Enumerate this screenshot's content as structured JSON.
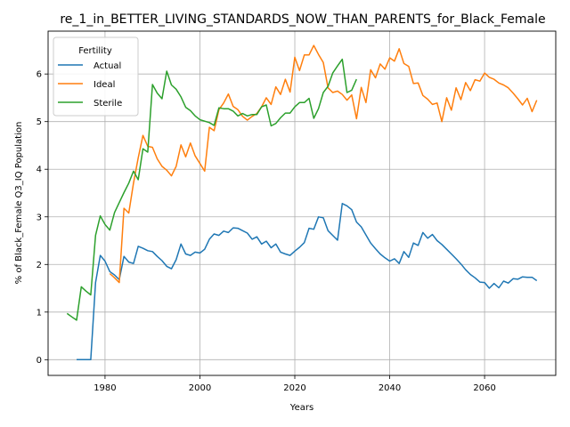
{
  "chart_data": {
    "type": "line",
    "title": "re_1_in_BETTER_LIVING_STANDARDS_NOW_THAN_PARENTS_for_Black_Female",
    "xlabel": "Years",
    "ylabel": "% of Black_Female Q3_IQ Population",
    "xlim": [
      1968,
      2075
    ],
    "ylim": [
      -0.33,
      6.9
    ],
    "xticks": [
      1980,
      2000,
      2020,
      2040,
      2060
    ],
    "yticks": [
      0,
      1,
      2,
      3,
      4,
      5,
      6
    ],
    "grid": true,
    "legend": {
      "title": "Fertility",
      "placement": "top-left"
    },
    "series": [
      {
        "name": "Actual",
        "color": "#1f77b4",
        "points": [
          [
            1974,
            0
          ],
          [
            1975,
            0
          ],
          [
            1976,
            0
          ],
          [
            1977,
            0
          ],
          [
            1978,
            1.62
          ],
          [
            1979,
            2.19
          ],
          [
            1980,
            2.07
          ],
          [
            1981,
            1.85
          ],
          [
            1982,
            1.78
          ],
          [
            1983,
            1.68
          ],
          [
            1984,
            2.17
          ],
          [
            1985,
            2.05
          ],
          [
            1986,
            2.02
          ],
          [
            1987,
            2.38
          ],
          [
            1988,
            2.34
          ],
          [
            1989,
            2.29
          ],
          [
            1990,
            2.27
          ],
          [
            1991,
            2.17
          ],
          [
            1992,
            2.08
          ],
          [
            1993,
            1.96
          ],
          [
            1994,
            1.91
          ],
          [
            1995,
            2.1
          ],
          [
            1996,
            2.43
          ],
          [
            1997,
            2.22
          ],
          [
            1998,
            2.19
          ],
          [
            1999,
            2.26
          ],
          [
            2000,
            2.24
          ],
          [
            2001,
            2.32
          ],
          [
            2002,
            2.53
          ],
          [
            2003,
            2.64
          ],
          [
            2004,
            2.61
          ],
          [
            2005,
            2.7
          ],
          [
            2006,
            2.67
          ],
          [
            2007,
            2.77
          ],
          [
            2008,
            2.76
          ],
          [
            2009,
            2.71
          ],
          [
            2010,
            2.66
          ],
          [
            2011,
            2.53
          ],
          [
            2012,
            2.58
          ],
          [
            2013,
            2.43
          ],
          [
            2014,
            2.49
          ],
          [
            2015,
            2.35
          ],
          [
            2016,
            2.43
          ],
          [
            2017,
            2.26
          ],
          [
            2018,
            2.22
          ],
          [
            2019,
            2.19
          ],
          [
            2020,
            2.28
          ],
          [
            2021,
            2.36
          ],
          [
            2022,
            2.46
          ],
          [
            2023,
            2.76
          ],
          [
            2024,
            2.74
          ],
          [
            2025,
            3.0
          ],
          [
            2026,
            2.98
          ],
          [
            2027,
            2.71
          ],
          [
            2028,
            2.61
          ],
          [
            2029,
            2.51
          ],
          [
            2030,
            3.28
          ],
          [
            2031,
            3.23
          ],
          [
            2032,
            3.15
          ],
          [
            2033,
            2.89
          ],
          [
            2034,
            2.79
          ],
          [
            2035,
            2.62
          ],
          [
            2036,
            2.45
          ],
          [
            2037,
            2.33
          ],
          [
            2038,
            2.22
          ],
          [
            2039,
            2.14
          ],
          [
            2040,
            2.07
          ],
          [
            2041,
            2.12
          ],
          [
            2042,
            2.02
          ],
          [
            2043,
            2.27
          ],
          [
            2044,
            2.15
          ],
          [
            2045,
            2.45
          ],
          [
            2046,
            2.4
          ],
          [
            2047,
            2.67
          ],
          [
            2048,
            2.55
          ],
          [
            2049,
            2.63
          ],
          [
            2050,
            2.5
          ],
          [
            2051,
            2.42
          ],
          [
            2052,
            2.32
          ],
          [
            2053,
            2.22
          ],
          [
            2054,
            2.12
          ],
          [
            2055,
            2.01
          ],
          [
            2056,
            1.89
          ],
          [
            2057,
            1.79
          ],
          [
            2058,
            1.72
          ],
          [
            2059,
            1.63
          ],
          [
            2060,
            1.62
          ],
          [
            2061,
            1.5
          ],
          [
            2062,
            1.6
          ],
          [
            2063,
            1.51
          ],
          [
            2064,
            1.65
          ],
          [
            2065,
            1.61
          ],
          [
            2066,
            1.7
          ],
          [
            2067,
            1.69
          ],
          [
            2068,
            1.74
          ],
          [
            2069,
            1.73
          ],
          [
            2070,
            1.73
          ],
          [
            2071,
            1.66
          ]
        ]
      },
      {
        "name": "Ideal",
        "color": "#ff7f0e",
        "points": [
          [
            1981,
            1.81
          ],
          [
            1982,
            1.72
          ],
          [
            1983,
            1.62
          ],
          [
            1984,
            3.18
          ],
          [
            1985,
            3.08
          ],
          [
            1986,
            3.71
          ],
          [
            1987,
            4.24
          ],
          [
            1988,
            4.71
          ],
          [
            1989,
            4.48
          ],
          [
            1990,
            4.46
          ],
          [
            1991,
            4.22
          ],
          [
            1992,
            4.06
          ],
          [
            1993,
            3.98
          ],
          [
            1994,
            3.86
          ],
          [
            1995,
            4.06
          ],
          [
            1996,
            4.51
          ],
          [
            1997,
            4.26
          ],
          [
            1998,
            4.55
          ],
          [
            1999,
            4.28
          ],
          [
            2000,
            4.12
          ],
          [
            2001,
            3.96
          ],
          [
            2002,
            4.88
          ],
          [
            2003,
            4.81
          ],
          [
            2004,
            5.25
          ],
          [
            2005,
            5.39
          ],
          [
            2006,
            5.58
          ],
          [
            2007,
            5.32
          ],
          [
            2008,
            5.25
          ],
          [
            2009,
            5.11
          ],
          [
            2010,
            5.03
          ],
          [
            2011,
            5.11
          ],
          [
            2012,
            5.17
          ],
          [
            2013,
            5.31
          ],
          [
            2014,
            5.5
          ],
          [
            2015,
            5.36
          ],
          [
            2016,
            5.73
          ],
          [
            2017,
            5.57
          ],
          [
            2018,
            5.89
          ],
          [
            2019,
            5.62
          ],
          [
            2020,
            6.35
          ],
          [
            2021,
            6.07
          ],
          [
            2022,
            6.4
          ],
          [
            2023,
            6.4
          ],
          [
            2024,
            6.6
          ],
          [
            2025,
            6.41
          ],
          [
            2026,
            6.24
          ],
          [
            2027,
            5.71
          ],
          [
            2028,
            5.61
          ],
          [
            2029,
            5.64
          ],
          [
            2030,
            5.57
          ],
          [
            2031,
            5.45
          ],
          [
            2032,
            5.56
          ],
          [
            2033,
            5.06
          ],
          [
            2034,
            5.72
          ],
          [
            2035,
            5.4
          ],
          [
            2036,
            6.09
          ],
          [
            2037,
            5.92
          ],
          [
            2038,
            6.21
          ],
          [
            2039,
            6.1
          ],
          [
            2040,
            6.34
          ],
          [
            2041,
            6.27
          ],
          [
            2042,
            6.53
          ],
          [
            2043,
            6.22
          ],
          [
            2044,
            6.16
          ],
          [
            2045,
            5.8
          ],
          [
            2046,
            5.81
          ],
          [
            2047,
            5.55
          ],
          [
            2048,
            5.47
          ],
          [
            2049,
            5.36
          ],
          [
            2050,
            5.39
          ],
          [
            2051,
            5.0
          ],
          [
            2052,
            5.5
          ],
          [
            2053,
            5.24
          ],
          [
            2054,
            5.71
          ],
          [
            2055,
            5.46
          ],
          [
            2056,
            5.82
          ],
          [
            2057,
            5.65
          ],
          [
            2058,
            5.88
          ],
          [
            2059,
            5.85
          ],
          [
            2060,
            6.02
          ],
          [
            2061,
            5.93
          ],
          [
            2062,
            5.89
          ],
          [
            2063,
            5.81
          ],
          [
            2064,
            5.77
          ],
          [
            2065,
            5.71
          ],
          [
            2066,
            5.6
          ],
          [
            2067,
            5.48
          ],
          [
            2068,
            5.35
          ],
          [
            2069,
            5.49
          ],
          [
            2070,
            5.21
          ],
          [
            2071,
            5.45
          ]
        ]
      },
      {
        "name": "Sterile",
        "color": "#2ca02c",
        "points": [
          [
            1972,
            0.97
          ],
          [
            1973,
            0.9
          ],
          [
            1974,
            0.83
          ],
          [
            1975,
            1.53
          ],
          [
            1976,
            1.44
          ],
          [
            1977,
            1.36
          ],
          [
            1978,
            2.61
          ],
          [
            1979,
            3.02
          ],
          [
            1980,
            2.84
          ],
          [
            1981,
            2.72
          ],
          [
            1982,
            3.09
          ],
          [
            1983,
            3.3
          ],
          [
            1984,
            3.51
          ],
          [
            1985,
            3.71
          ],
          [
            1986,
            3.96
          ],
          [
            1987,
            3.78
          ],
          [
            1988,
            4.43
          ],
          [
            1989,
            4.36
          ],
          [
            1990,
            5.78
          ],
          [
            1991,
            5.6
          ],
          [
            1992,
            5.48
          ],
          [
            1993,
            6.06
          ],
          [
            1994,
            5.77
          ],
          [
            1995,
            5.68
          ],
          [
            1996,
            5.52
          ],
          [
            1997,
            5.3
          ],
          [
            1998,
            5.23
          ],
          [
            1999,
            5.12
          ],
          [
            2000,
            5.04
          ],
          [
            2001,
            5.01
          ],
          [
            2002,
            4.98
          ],
          [
            2003,
            4.92
          ],
          [
            2004,
            5.29
          ],
          [
            2005,
            5.27
          ],
          [
            2006,
            5.27
          ],
          [
            2007,
            5.22
          ],
          [
            2008,
            5.12
          ],
          [
            2009,
            5.17
          ],
          [
            2010,
            5.12
          ],
          [
            2011,
            5.15
          ],
          [
            2012,
            5.15
          ],
          [
            2013,
            5.31
          ],
          [
            2014,
            5.35
          ],
          [
            2015,
            4.91
          ],
          [
            2016,
            4.96
          ],
          [
            2017,
            5.08
          ],
          [
            2018,
            5.18
          ],
          [
            2019,
            5.18
          ],
          [
            2020,
            5.31
          ],
          [
            2021,
            5.4
          ],
          [
            2022,
            5.4
          ],
          [
            2023,
            5.49
          ],
          [
            2024,
            5.07
          ],
          [
            2025,
            5.27
          ],
          [
            2026,
            5.61
          ],
          [
            2027,
            5.74
          ],
          [
            2028,
            6.02
          ],
          [
            2029,
            6.17
          ],
          [
            2030,
            6.31
          ],
          [
            2031,
            5.61
          ],
          [
            2032,
            5.66
          ],
          [
            2033,
            5.89
          ]
        ]
      }
    ]
  }
}
